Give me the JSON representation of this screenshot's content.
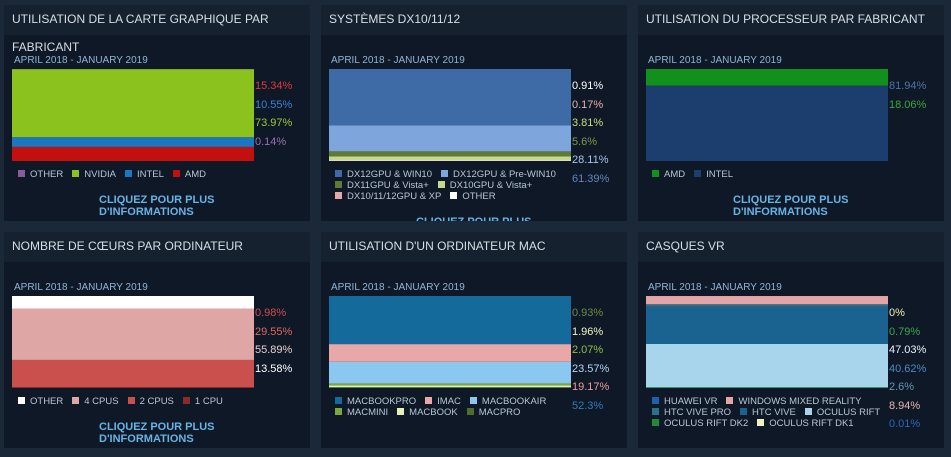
{
  "panels": [
    {
      "title": "UTILISATION DE LA CARTE GRAPHIQUE PAR FABRICANT",
      "subtitle": "APRIL 2018 - JANUARY 2019",
      "link": "CLIQUEZ POUR PLUS D'INFORMATIONS",
      "series": [
        {
          "name": "AMD",
          "color": "#c40f0f",
          "label_color": "#e0383d",
          "value": 15.34,
          "value_label": "15.34%"
        },
        {
          "name": "INTEL",
          "color": "#1a78c2",
          "label_color": "#3b82d6",
          "value": 10.55,
          "value_label": "10.55%"
        },
        {
          "name": "NVIDIA",
          "color": "#8cc21e",
          "label_color": "#9ec93a",
          "value": 73.97,
          "value_label": "73.97%"
        },
        {
          "name": "OTHER",
          "color": "#8b5a9e",
          "label_color": "#9a70b2",
          "value": 0.14,
          "value_label": "0.14%"
        }
      ]
    },
    {
      "title": "SYSTÈMES DX10/11/12",
      "subtitle": "APRIL 2018 - JANUARY 2019",
      "link": "CLIQUEZ POUR PLUS D'INFORMATIONS",
      "series": [
        {
          "name": "OTHER",
          "color": "#ffffff",
          "label_color": "#ffffff",
          "value": 0.91,
          "value_label": "0.91%"
        },
        {
          "name": "DX10/11/12GPU & XP",
          "color": "#e3a8a8",
          "label_color": "#e7b1a9",
          "value": 0.17,
          "value_label": "0.17%"
        },
        {
          "name": "DX10GPU & Vista+",
          "color": "#c4d98a",
          "label_color": "#c9dc7e",
          "value": 3.81,
          "value_label": "3.81%"
        },
        {
          "name": "DX11GPU & Vista+",
          "color": "#5f7a34",
          "label_color": "#7c9a48",
          "value": 5.6,
          "value_label": "5.6%"
        },
        {
          "name": "DX12GPU & Pre-WIN10",
          "color": "#7fa6dc",
          "label_color": "#a9c3ea",
          "value": 28.11,
          "value_label": "28.11%"
        },
        {
          "name": "DX12GPU & WIN10",
          "color": "#3e6aa6",
          "label_color": "#5f88c2",
          "value": 61.39,
          "value_label": "61.39%"
        }
      ]
    },
    {
      "title": "UTILISATION DU PROCESSEUR PAR FABRICANT",
      "subtitle": "APRIL 2018 - JANUARY 2019",
      "link": "CLIQUEZ POUR PLUS D'INFORMATIONS",
      "series": [
        {
          "name": "INTEL",
          "color": "#1c3e6e",
          "label_color": "#4f73a8",
          "value": 81.94,
          "value_label": "81.94%"
        },
        {
          "name": "AMD",
          "color": "#12901c",
          "label_color": "#3aa83c",
          "value": 18.06,
          "value_label": "18.06%"
        }
      ]
    },
    {
      "title": "NOMBRE DE CŒURS PAR ORDINATEUR",
      "subtitle": "APRIL 2018 - JANUARY 2019",
      "link": "CLIQUEZ POUR PLUS D'INFORMATIONS",
      "series": [
        {
          "name": "1 CPU",
          "color": "#8e2a2a",
          "label_color": "#d04c4c",
          "value": 0.98,
          "value_label": "0.98%"
        },
        {
          "name": "2 CPUS",
          "color": "#c9504d",
          "label_color": "#e0685d",
          "value": 29.55,
          "value_label": "29.55%"
        },
        {
          "name": "4 CPUS",
          "color": "#dfa6a6",
          "label_color": "#ead0cf",
          "value": 55.89,
          "value_label": "55.89%"
        },
        {
          "name": "OTHER",
          "color": "#ffffff",
          "label_color": "#ffffff",
          "value": 13.58,
          "value_label": "13.58%"
        }
      ]
    },
    {
      "title": "UTILISATION D'UN ORDINATEUR MAC",
      "subtitle": "APRIL 2018 - JANUARY 2019",
      "series": [
        {
          "name": "MACPRO",
          "color": "#4f6e2e",
          "label_color": "#6e8c42",
          "value": 0.93,
          "value_label": "0.93%"
        },
        {
          "name": "MACBOOK",
          "color": "#e6f0b8",
          "label_color": "#eef5c4",
          "value": 1.96,
          "value_label": "1.96%"
        },
        {
          "name": "MACMINI",
          "color": "#78a83e",
          "label_color": "#8fbf4c",
          "value": 2.07,
          "value_label": "2.07%"
        },
        {
          "name": "MACBOOKAIR",
          "color": "#8ac8f0",
          "label_color": "#a9d8f6",
          "value": 23.57,
          "value_label": "23.57%"
        },
        {
          "name": "IMAC",
          "color": "#e8a8a8",
          "label_color": "#ee9c9c",
          "value": 19.17,
          "value_label": "19.17%"
        },
        {
          "name": "MACBOOKPRO",
          "color": "#156a9c",
          "label_color": "#2f7cbf",
          "value": 52.3,
          "value_label": "52.3%"
        }
      ]
    },
    {
      "title": "CASQUES VR",
      "subtitle": "APRIL 2018 - JANUARY 2019",
      "series": [
        {
          "name": "OCULUS RIFT DK1",
          "color": "#eef2c0",
          "label_color": "#f0f0a8",
          "value": 0,
          "value_label": "0%"
        },
        {
          "name": "OCULUS RIFT DK2",
          "color": "#1f8a3a",
          "label_color": "#3aa84a",
          "value": 0.79,
          "value_label": "0.79%"
        },
        {
          "name": "OCULUS RIFT",
          "color": "#a8d4ec",
          "label_color": "#e6f2fa",
          "value": 47.03,
          "value_label": "47.03%"
        },
        {
          "name": "HTC VIVE",
          "color": "#1a6290",
          "label_color": "#4d8ac2",
          "value": 40.62,
          "value_label": "40.62%"
        },
        {
          "name": "HTC VIVE PRO",
          "color": "#2f6f8a",
          "label_color": "#5f9ab6",
          "value": 2.6,
          "value_label": "2.6%"
        },
        {
          "name": "WINDOWS MIXED REALITY",
          "color": "#e3a5a5",
          "label_color": "#eab3b3",
          "value": 8.94,
          "value_label": "8.94%"
        },
        {
          "name": "HUAWEI VR",
          "color": "#1d5fb0",
          "label_color": "#2c66c0",
          "value": 0.01,
          "value_label": "0.01%"
        }
      ]
    }
  ]
}
